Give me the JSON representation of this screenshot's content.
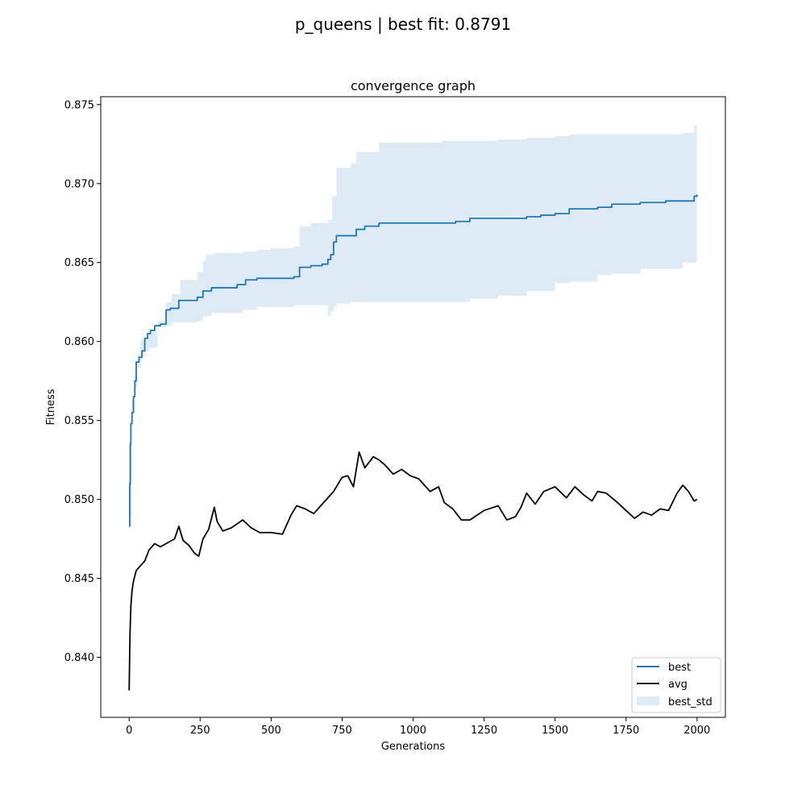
{
  "figure": {
    "suptitle": "p_queens | best fit: 0.8791"
  },
  "chart_data": {
    "type": "line",
    "title": "convergence graph",
    "xlabel": "Generations",
    "ylabel": "Fitness",
    "xlim": [
      -100,
      2100
    ],
    "ylim": [
      0.8362,
      0.8755
    ],
    "xticks": [
      0,
      250,
      500,
      750,
      1000,
      1250,
      1500,
      1750,
      2000
    ],
    "yticks": [
      0.84,
      0.845,
      0.85,
      0.855,
      0.86,
      0.865,
      0.87,
      0.875
    ],
    "grid": false,
    "legend_position": "lower-right",
    "series": [
      {
        "name": "best",
        "kind": "step-line",
        "color": "#1f77b4",
        "points": [
          [
            0,
            0.8483
          ],
          [
            2,
            0.851
          ],
          [
            4,
            0.8535
          ],
          [
            6,
            0.8548
          ],
          [
            10,
            0.8555
          ],
          [
            15,
            0.8565
          ],
          [
            20,
            0.8575
          ],
          [
            25,
            0.8587
          ],
          [
            35,
            0.859
          ],
          [
            45,
            0.8594
          ],
          [
            55,
            0.8602
          ],
          [
            65,
            0.8605
          ],
          [
            75,
            0.8607
          ],
          [
            90,
            0.861
          ],
          [
            110,
            0.8611
          ],
          [
            130,
            0.862
          ],
          [
            145,
            0.8621
          ],
          [
            175,
            0.8626
          ],
          [
            240,
            0.8628
          ],
          [
            260,
            0.8632
          ],
          [
            290,
            0.8634
          ],
          [
            380,
            0.8636
          ],
          [
            410,
            0.8639
          ],
          [
            450,
            0.864
          ],
          [
            580,
            0.8641
          ],
          [
            600,
            0.8647
          ],
          [
            640,
            0.8648
          ],
          [
            680,
            0.8649
          ],
          [
            700,
            0.8652
          ],
          [
            710,
            0.8655
          ],
          [
            720,
            0.8663
          ],
          [
            730,
            0.8667
          ],
          [
            800,
            0.8671
          ],
          [
            830,
            0.8673
          ],
          [
            880,
            0.8675
          ],
          [
            1000,
            0.8675
          ],
          [
            1150,
            0.8676
          ],
          [
            1200,
            0.8678
          ],
          [
            1300,
            0.8678
          ],
          [
            1400,
            0.8679
          ],
          [
            1450,
            0.868
          ],
          [
            1500,
            0.8681
          ],
          [
            1550,
            0.8684
          ],
          [
            1650,
            0.8685
          ],
          [
            1700,
            0.8687
          ],
          [
            1800,
            0.8688
          ],
          [
            1890,
            0.8689
          ],
          [
            1990,
            0.8692
          ],
          [
            2000,
            0.8693
          ]
        ]
      },
      {
        "name": "avg",
        "kind": "line",
        "color": "#000000",
        "points": [
          [
            0,
            0.8379
          ],
          [
            3,
            0.8415
          ],
          [
            6,
            0.8432
          ],
          [
            10,
            0.8442
          ],
          [
            15,
            0.8448
          ],
          [
            25,
            0.8455
          ],
          [
            40,
            0.8458
          ],
          [
            55,
            0.8461
          ],
          [
            70,
            0.8468
          ],
          [
            90,
            0.8472
          ],
          [
            110,
            0.847
          ],
          [
            140,
            0.8473
          ],
          [
            160,
            0.8475
          ],
          [
            175,
            0.8483
          ],
          [
            190,
            0.8474
          ],
          [
            210,
            0.8471
          ],
          [
            230,
            0.8466
          ],
          [
            245,
            0.8464
          ],
          [
            260,
            0.8475
          ],
          [
            280,
            0.8481
          ],
          [
            300,
            0.8495
          ],
          [
            310,
            0.8486
          ],
          [
            330,
            0.848
          ],
          [
            360,
            0.8482
          ],
          [
            400,
            0.8487
          ],
          [
            430,
            0.8482
          ],
          [
            460,
            0.8479
          ],
          [
            500,
            0.8479
          ],
          [
            540,
            0.8478
          ],
          [
            570,
            0.849
          ],
          [
            590,
            0.8496
          ],
          [
            620,
            0.8494
          ],
          [
            650,
            0.8491
          ],
          [
            680,
            0.8497
          ],
          [
            700,
            0.8501
          ],
          [
            720,
            0.8505
          ],
          [
            750,
            0.8514
          ],
          [
            770,
            0.8515
          ],
          [
            790,
            0.8508
          ],
          [
            810,
            0.853
          ],
          [
            830,
            0.852
          ],
          [
            860,
            0.8527
          ],
          [
            880,
            0.8525
          ],
          [
            900,
            0.8522
          ],
          [
            930,
            0.8516
          ],
          [
            960,
            0.8519
          ],
          [
            990,
            0.8515
          ],
          [
            1020,
            0.8513
          ],
          [
            1060,
            0.8505
          ],
          [
            1090,
            0.8508
          ],
          [
            1110,
            0.8498
          ],
          [
            1140,
            0.8494
          ],
          [
            1170,
            0.8487
          ],
          [
            1200,
            0.8487
          ],
          [
            1250,
            0.8493
          ],
          [
            1300,
            0.8496
          ],
          [
            1330,
            0.8487
          ],
          [
            1360,
            0.8489
          ],
          [
            1380,
            0.8495
          ],
          [
            1400,
            0.8504
          ],
          [
            1430,
            0.8497
          ],
          [
            1460,
            0.8505
          ],
          [
            1500,
            0.8508
          ],
          [
            1540,
            0.8501
          ],
          [
            1570,
            0.8508
          ],
          [
            1600,
            0.8503
          ],
          [
            1630,
            0.8499
          ],
          [
            1650,
            0.8505
          ],
          [
            1680,
            0.8504
          ],
          [
            1720,
            0.8498
          ],
          [
            1750,
            0.8493
          ],
          [
            1780,
            0.8488
          ],
          [
            1810,
            0.8492
          ],
          [
            1840,
            0.849
          ],
          [
            1870,
            0.8494
          ],
          [
            1900,
            0.8493
          ],
          [
            1930,
            0.8504
          ],
          [
            1950,
            0.8509
          ],
          [
            1970,
            0.8505
          ],
          [
            1990,
            0.8499
          ],
          [
            2000,
            0.85
          ]
        ]
      },
      {
        "name": "best_std",
        "kind": "band",
        "color": "#1f77b4",
        "opacity": 0.15,
        "upper": [
          [
            0,
            0.8488
          ],
          [
            10,
            0.8555
          ],
          [
            20,
            0.858
          ],
          [
            30,
            0.8592
          ],
          [
            40,
            0.8601
          ],
          [
            60,
            0.8605
          ],
          [
            80,
            0.8606
          ],
          [
            100,
            0.8613
          ],
          [
            130,
            0.8625
          ],
          [
            150,
            0.863
          ],
          [
            180,
            0.8639
          ],
          [
            240,
            0.8644
          ],
          [
            260,
            0.8651
          ],
          [
            270,
            0.8655
          ],
          [
            300,
            0.8656
          ],
          [
            400,
            0.8657
          ],
          [
            450,
            0.8658
          ],
          [
            500,
            0.8659
          ],
          [
            580,
            0.866
          ],
          [
            600,
            0.8673
          ],
          [
            640,
            0.8675
          ],
          [
            700,
            0.8677
          ],
          [
            715,
            0.8692
          ],
          [
            730,
            0.871
          ],
          [
            780,
            0.8713
          ],
          [
            800,
            0.872
          ],
          [
            880,
            0.8726
          ],
          [
            1000,
            0.8726
          ],
          [
            1100,
            0.8727
          ],
          [
            1200,
            0.8727
          ],
          [
            1300,
            0.8728
          ],
          [
            1400,
            0.8729
          ],
          [
            1500,
            0.873
          ],
          [
            1550,
            0.8731
          ],
          [
            1700,
            0.8731
          ],
          [
            1800,
            0.8731
          ],
          [
            1950,
            0.8732
          ],
          [
            1990,
            0.8737
          ],
          [
            2000,
            0.8737
          ]
        ],
        "lower": [
          [
            0,
            0.8472
          ],
          [
            10,
            0.8535
          ],
          [
            20,
            0.8563
          ],
          [
            30,
            0.8571
          ],
          [
            40,
            0.8583
          ],
          [
            50,
            0.8592
          ],
          [
            70,
            0.8594
          ],
          [
            100,
            0.8596
          ],
          [
            130,
            0.8609
          ],
          [
            150,
            0.861
          ],
          [
            180,
            0.8612
          ],
          [
            240,
            0.8612
          ],
          [
            260,
            0.8613
          ],
          [
            290,
            0.8616
          ],
          [
            400,
            0.8618
          ],
          [
            450,
            0.862
          ],
          [
            580,
            0.8622
          ],
          [
            600,
            0.8623
          ],
          [
            650,
            0.8623
          ],
          [
            700,
            0.8623
          ],
          [
            710,
            0.8616
          ],
          [
            720,
            0.8619
          ],
          [
            730,
            0.8622
          ],
          [
            780,
            0.8624
          ],
          [
            880,
            0.8625
          ],
          [
            1000,
            0.8625
          ],
          [
            1200,
            0.8625
          ],
          [
            1300,
            0.8627
          ],
          [
            1400,
            0.8629
          ],
          [
            1500,
            0.8632
          ],
          [
            1550,
            0.8637
          ],
          [
            1650,
            0.8638
          ],
          [
            1700,
            0.8642
          ],
          [
            1800,
            0.8643
          ],
          [
            1950,
            0.8646
          ],
          [
            1990,
            0.865
          ],
          [
            2000,
            0.865
          ]
        ]
      }
    ]
  }
}
